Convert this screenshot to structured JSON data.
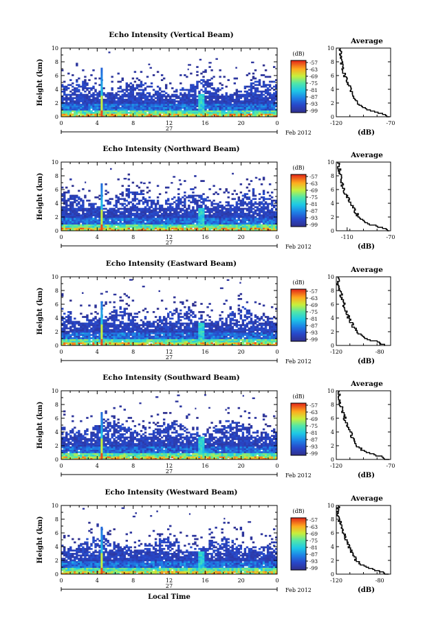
{
  "chart_data": [
    {
      "type": "heatmap",
      "title": "Echo Intensity (Vertical Beam)",
      "ylabel": "Height (km)",
      "xlim": [
        0,
        24
      ],
      "ylim": [
        0,
        10
      ],
      "x_ticks": [
        "0",
        "4",
        "8",
        "12",
        "16",
        "20",
        "0"
      ],
      "y_ticks": [
        "0",
        "2",
        "4",
        "6",
        "8",
        "10"
      ],
      "date_day": "27",
      "date_month": "Feb 2012",
      "colorbar": {
        "label": "(dB)",
        "ticks": [
          "-57",
          "-63",
          "-69",
          "-75",
          "-81",
          "-87",
          "-93",
          "-99"
        ]
      },
      "features": {
        "spike_hour": 4.5,
        "spike_top_km": 7.2,
        "second_column_hour": 15.5,
        "cloud_top_km": 4.5
      },
      "average_profile": {
        "title": "Average",
        "xlabel": "(dB)",
        "xlim": [
          -120,
          -70
        ],
        "x_ticks": [
          "-120",
          "-70"
        ],
        "y_ticks": [
          "0",
          "2",
          "4",
          "6",
          "8",
          "10"
        ],
        "height_km": [
          0,
          0.5,
          1,
          1.5,
          2,
          3,
          4,
          5,
          6,
          7,
          8,
          9,
          10
        ],
        "values_db": [
          -72,
          -78,
          -90,
          -96,
          -100,
          -104,
          -107,
          -109,
          -112,
          -114,
          -115,
          -116,
          -117
        ]
      }
    },
    {
      "type": "heatmap",
      "title": "Echo Intensity (Northward Beam)",
      "ylabel": "Height (km)",
      "xlim": [
        0,
        24
      ],
      "ylim": [
        0,
        10
      ],
      "x_ticks": [
        "0",
        "4",
        "8",
        "12",
        "16",
        "20",
        "0"
      ],
      "y_ticks": [
        "0",
        "2",
        "4",
        "6",
        "8",
        "10"
      ],
      "date_day": "27",
      "date_month": "Feb 2012",
      "colorbar": {
        "label": "(dB)",
        "ticks": [
          "-57",
          "-63",
          "-69",
          "-75",
          "-81",
          "-87",
          "-93",
          "-99"
        ]
      },
      "features": {
        "spike_hour": 4.5,
        "spike_top_km": 6.8,
        "second_column_hour": 15.5,
        "cloud_top_km": 5.0
      },
      "average_profile": {
        "title": "Average",
        "xlabel": "(dB)",
        "xlim": [
          -120,
          -70
        ],
        "x_ticks": [
          "-110",
          "-70"
        ],
        "y_ticks": [
          "0",
          "2",
          "4",
          "6",
          "8",
          "10"
        ],
        "height_km": [
          0,
          0.5,
          1,
          1.5,
          2,
          3,
          4,
          5,
          6,
          7,
          8,
          9,
          10
        ],
        "values_db": [
          -71,
          -77,
          -88,
          -95,
          -99,
          -103,
          -107,
          -110,
          -113,
          -115,
          -116,
          -117,
          -118
        ]
      }
    },
    {
      "type": "heatmap",
      "title": "Echo Intensity (Eastward Beam)",
      "ylabel": "Height (km)",
      "xlim": [
        0,
        24
      ],
      "ylim": [
        0,
        10
      ],
      "x_ticks": [
        "0",
        "4",
        "8",
        "12",
        "16",
        "20",
        "0"
      ],
      "y_ticks": [
        "0",
        "2",
        "4",
        "6",
        "8",
        "10"
      ],
      "date_day": "27",
      "date_month": "Feb 2012",
      "colorbar": {
        "label": "(dB)",
        "ticks": [
          "-57",
          "-63",
          "-69",
          "-75",
          "-81",
          "-87",
          "-93",
          "-99"
        ]
      },
      "features": {
        "spike_hour": 4.5,
        "spike_top_km": 6.5,
        "second_column_hour": 15.5,
        "cloud_top_km": 4.5
      },
      "average_profile": {
        "title": "Average",
        "xlabel": "(dB)",
        "xlim": [
          -120,
          -70
        ],
        "x_ticks": [
          "-120",
          "-80"
        ],
        "y_ticks": [
          "0",
          "2",
          "4",
          "6",
          "8",
          "10"
        ],
        "height_km": [
          0,
          0.5,
          1,
          1.5,
          2,
          3,
          4,
          5,
          6,
          7,
          8,
          9,
          10
        ],
        "values_db": [
          -74,
          -80,
          -91,
          -97,
          -101,
          -105,
          -108,
          -111,
          -113,
          -115,
          -116,
          -118,
          -118
        ]
      }
    },
    {
      "type": "heatmap",
      "title": "Echo Intensity (Southward Beam)",
      "ylabel": "Height (km)",
      "xlim": [
        0,
        24
      ],
      "ylim": [
        0,
        10
      ],
      "x_ticks": [
        "0",
        "4",
        "8",
        "12",
        "16",
        "20",
        "0"
      ],
      "y_ticks": [
        "0",
        "2",
        "4",
        "6",
        "8",
        "10"
      ],
      "date_day": "27",
      "date_month": "Feb 2012",
      "colorbar": {
        "label": "(dB)",
        "ticks": [
          "-57",
          "-63",
          "-69",
          "-75",
          "-81",
          "-87",
          "-93",
          "-99"
        ]
      },
      "features": {
        "spike_hour": 4.5,
        "spike_top_km": 7.0,
        "second_column_hour": 15.5,
        "cloud_top_km": 4.8
      },
      "average_profile": {
        "title": "Average",
        "xlabel": "(dB)",
        "xlim": [
          -120,
          -70
        ],
        "x_ticks": [
          "-120",
          "-70"
        ],
        "y_ticks": [
          "0",
          "2",
          "4",
          "6",
          "8",
          "10"
        ],
        "height_km": [
          0,
          0.5,
          1,
          1.5,
          2,
          3,
          4,
          5,
          6,
          7,
          8,
          9,
          10
        ],
        "values_db": [
          -72,
          -79,
          -90,
          -96,
          -100,
          -104,
          -107,
          -110,
          -112,
          -114,
          -116,
          -117,
          -118
        ]
      }
    },
    {
      "type": "heatmap",
      "title": "Echo Intensity (Westward Beam)",
      "ylabel": "Height (km)",
      "xlabel": "Local Time",
      "xlim": [
        0,
        24
      ],
      "ylim": [
        0,
        10
      ],
      "x_ticks": [
        "0",
        "4",
        "8",
        "12",
        "16",
        "20",
        "0"
      ],
      "y_ticks": [
        "0",
        "2",
        "4",
        "6",
        "8",
        "10"
      ],
      "date_day": "27",
      "date_month": "Feb 2012",
      "colorbar": {
        "label": "(dB)",
        "ticks": [
          "-57",
          "-63",
          "-69",
          "-75",
          "-81",
          "-87",
          "-93",
          "-99"
        ]
      },
      "features": {
        "spike_hour": 4.5,
        "spike_top_km": 7.0,
        "second_column_hour": 15.5,
        "cloud_top_km": 4.5
      },
      "average_profile": {
        "title": "Average",
        "xlabel": "(dB)",
        "xlim": [
          -120,
          -70
        ],
        "x_ticks": [
          "-120",
          "-80"
        ],
        "y_ticks": [
          "0",
          "2",
          "4",
          "6",
          "8",
          "10"
        ],
        "height_km": [
          0,
          0.5,
          1,
          1.5,
          2,
          3,
          4,
          5,
          6,
          7,
          8,
          9,
          10
        ],
        "values_db": [
          -73,
          -80,
          -91,
          -97,
          -101,
          -105,
          -108,
          -111,
          -113,
          -115,
          -117,
          -118,
          -118
        ]
      }
    }
  ]
}
